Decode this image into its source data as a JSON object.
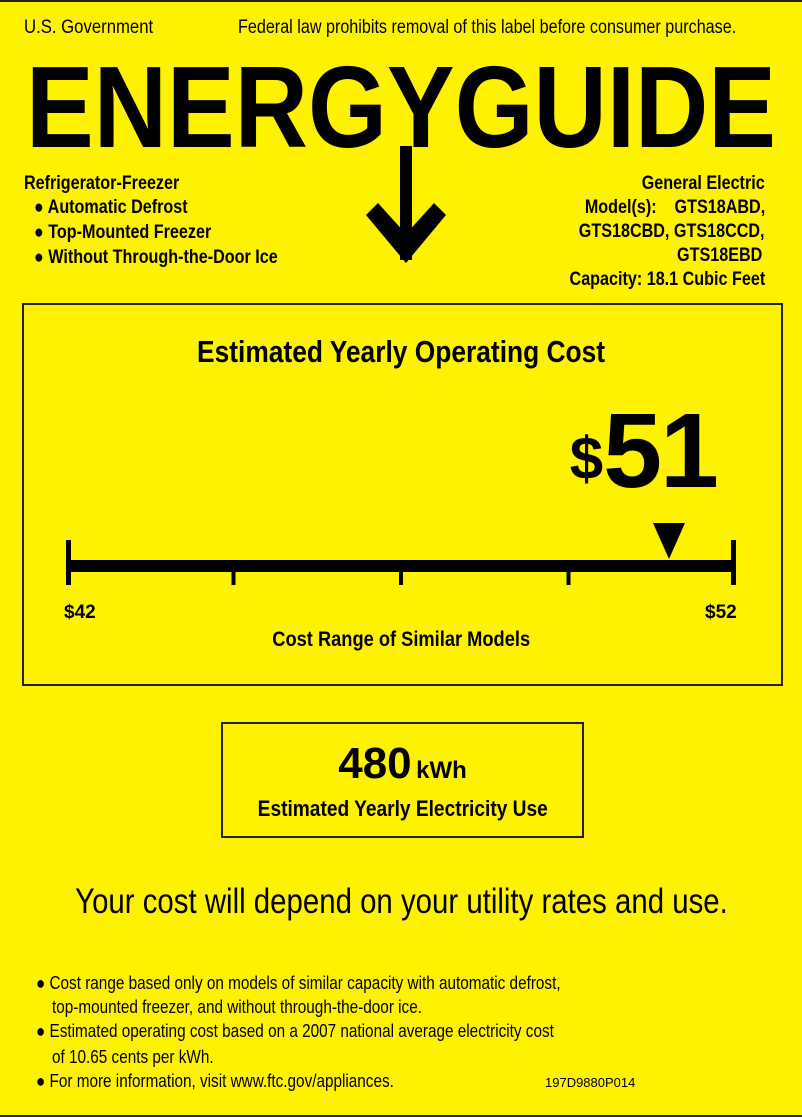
{
  "header": {
    "left": "U.S. Government",
    "right": "Federal law prohibits removal of this label before consumer purchase."
  },
  "logo": {
    "text": "ENERGYGUIDE",
    "icon": "down-arrow-icon"
  },
  "appliance": {
    "type": "Refrigerator-Freezer",
    "features": [
      "Automatic Defrost",
      "Top-Mounted Freezer",
      "Without Through-the-Door Ice"
    ]
  },
  "manufacturer": {
    "brand": "General Electric",
    "models_label": "Model(s):",
    "models_line1": "GTS18ABD,",
    "models_line2": "GTS18CBD, GTS18CCD,",
    "models_line3": "GTS18EBD",
    "capacity": "Capacity: 18.1 Cubic Feet"
  },
  "cost": {
    "title": "Estimated Yearly Operating Cost",
    "currency": "$",
    "value": "51",
    "range_min_label": "$42",
    "range_max_label": "$52",
    "range_min": 42,
    "range_max": 52,
    "marker_value": 51,
    "range_caption": "Cost Range of Similar Models"
  },
  "electricity": {
    "value": "480",
    "unit": "kWh",
    "caption": "Estimated Yearly Electricity Use"
  },
  "tagline": "Your cost will depend on your utility rates and use.",
  "notes": {
    "n1a": "Cost range based only on models of similar capacity with automatic defrost,",
    "n1b": "top-mounted freezer, and without through-the-door ice.",
    "n2a": "Estimated operating cost based on a 2007 national average electricity cost",
    "n2b": "of 10.65 cents per kWh.",
    "n3": "For more information, visit www.ftc.gov/appliances.",
    "code": "197D9880P014"
  },
  "colors": {
    "background": "#FFF200",
    "ink": "#000000"
  }
}
